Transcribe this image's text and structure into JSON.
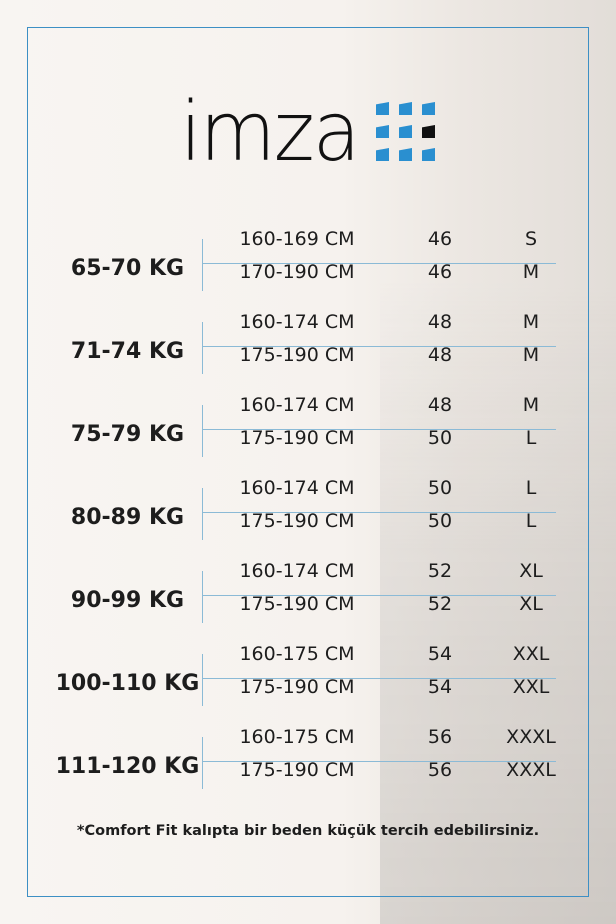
{
  "brand": {
    "logo_text": "imza",
    "accent": "#2a8fd0",
    "frame_color": "#3d8fc4"
  },
  "groups": [
    {
      "weight": "65-70 KG",
      "rows": [
        {
          "height": "160-169 CM",
          "number": "46",
          "size": "S"
        },
        {
          "height": "170-190 CM",
          "number": "46",
          "size": "M"
        }
      ]
    },
    {
      "weight": "71-74 KG",
      "rows": [
        {
          "height": "160-174 CM",
          "number": "48",
          "size": "M"
        },
        {
          "height": "175-190 CM",
          "number": "48",
          "size": "M"
        }
      ]
    },
    {
      "weight": "75-79 KG",
      "rows": [
        {
          "height": "160-174 CM",
          "number": "48",
          "size": "M"
        },
        {
          "height": "175-190 CM",
          "number": "50",
          "size": "L"
        }
      ]
    },
    {
      "weight": "80-89 KG",
      "rows": [
        {
          "height": "160-174 CM",
          "number": "50",
          "size": "L"
        },
        {
          "height": "175-190 CM",
          "number": "50",
          "size": "L"
        }
      ]
    },
    {
      "weight": "90-99 KG",
      "rows": [
        {
          "height": "160-174 CM",
          "number": "52",
          "size": "XL"
        },
        {
          "height": "175-190 CM",
          "number": "52",
          "size": "XL"
        }
      ]
    },
    {
      "weight": "100-110 KG",
      "rows": [
        {
          "height": "160-175 CM",
          "number": "54",
          "size": "XXL"
        },
        {
          "height": "175-190 CM",
          "number": "54",
          "size": "XXL"
        }
      ]
    },
    {
      "weight": "111-120 KG",
      "rows": [
        {
          "height": "160-175 CM",
          "number": "56",
          "size": "XXXL"
        },
        {
          "height": "175-190 CM",
          "number": "56",
          "size": "XXXL"
        }
      ]
    }
  ],
  "note": "*Comfort Fit kalıpta bir beden küçük tercih edebilirsiniz."
}
